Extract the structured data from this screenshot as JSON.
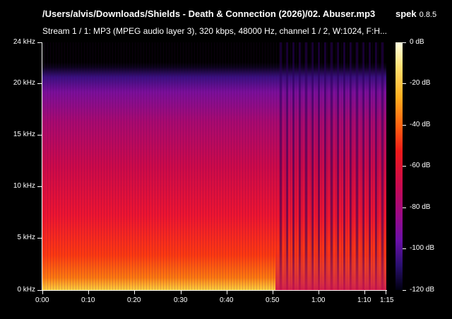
{
  "header": {
    "file_title": "/Users/alvis/Downloads/Shields - Death & Connection (2026)/02. Abuser.mp3",
    "app_name": "spek",
    "app_version": "0.8.5",
    "stream_info": "Stream 1 / 1: MP3 (MPEG audio layer 3), 320 kbps, 48000 Hz, channel 1 / 2, W:1024, F:H..."
  },
  "spectrogram": {
    "freq_labels": [
      "24 kHz",
      "20 kHz",
      "15 kHz",
      "10 kHz",
      "5 kHz",
      "0 kHz"
    ],
    "time_labels": [
      "0:00",
      "0:10",
      "0:20",
      "0:30",
      "0:40",
      "0:50",
      "1:00",
      "1:10",
      "1:15"
    ]
  },
  "colorbar": {
    "labels": [
      "0 dB",
      "-20 dB",
      "-40 dB",
      "-60 dB",
      "-80 dB",
      "-100 dB",
      "-120 dB"
    ]
  }
}
